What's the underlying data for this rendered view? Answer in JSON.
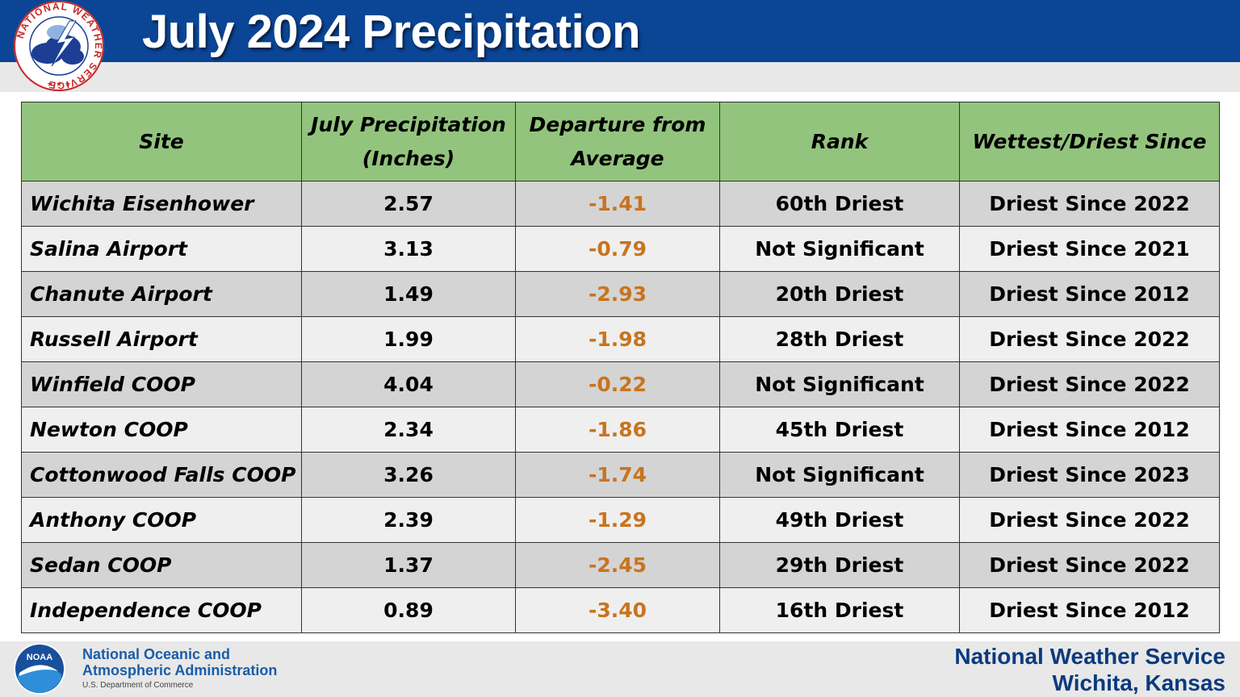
{
  "header": {
    "title": "July 2024 Precipitation",
    "logo_text": "NATIONAL WEATHER SERVICE"
  },
  "table": {
    "columns": [
      "Site",
      "July Precipitation (Inches)",
      "Departure from Average",
      "Rank",
      "Wettest/Driest Since"
    ],
    "rows": [
      {
        "site": "Wichita Eisenhower",
        "precip": "2.57",
        "departure": "-1.41",
        "rank": "60th Driest",
        "since": "Driest Since 2022"
      },
      {
        "site": "Salina Airport",
        "precip": "3.13",
        "departure": "-0.79",
        "rank": "Not Significant",
        "since": "Driest Since 2021"
      },
      {
        "site": "Chanute Airport",
        "precip": "1.49",
        "departure": "-2.93",
        "rank": "20th Driest",
        "since": "Driest Since 2012"
      },
      {
        "site": "Russell Airport",
        "precip": "1.99",
        "departure": "-1.98",
        "rank": "28th Driest",
        "since": "Driest Since 2022"
      },
      {
        "site": "Winfield COOP",
        "precip": "4.04",
        "departure": "-0.22",
        "rank": "Not Significant",
        "since": "Driest Since 2022"
      },
      {
        "site": "Newton COOP",
        "precip": "2.34",
        "departure": "-1.86",
        "rank": "45th Driest",
        "since": "Driest Since 2012"
      },
      {
        "site": "Cottonwood Falls COOP",
        "precip": "3.26",
        "departure": "-1.74",
        "rank": "Not Significant",
        "since": "Driest Since 2023"
      },
      {
        "site": "Anthony COOP",
        "precip": "2.39",
        "departure": "-1.29",
        "rank": "49th Driest",
        "since": "Driest Since 2022"
      },
      {
        "site": "Sedan COOP",
        "precip": "1.37",
        "departure": "-2.45",
        "rank": "29th Driest",
        "since": "Driest Since 2022"
      },
      {
        "site": "Independence COOP",
        "precip": "0.89",
        "departure": "-3.40",
        "rank": "16th Driest",
        "since": "Driest Since 2012"
      }
    ]
  },
  "footer": {
    "noaa_line1": "National Oceanic and",
    "noaa_line2": "Atmospheric Administration",
    "noaa_dept": "U.S. Department of Commerce",
    "noaa_logo_text": "NOAA",
    "office_line1": "National Weather Service",
    "office_line2": "Wichita, Kansas"
  },
  "colors": {
    "header_bar": "#0b4596",
    "table_header": "#93c47d",
    "departure_text": "#c8741e",
    "row_dark": "#d4d4d4",
    "row_light": "#efefef"
  }
}
